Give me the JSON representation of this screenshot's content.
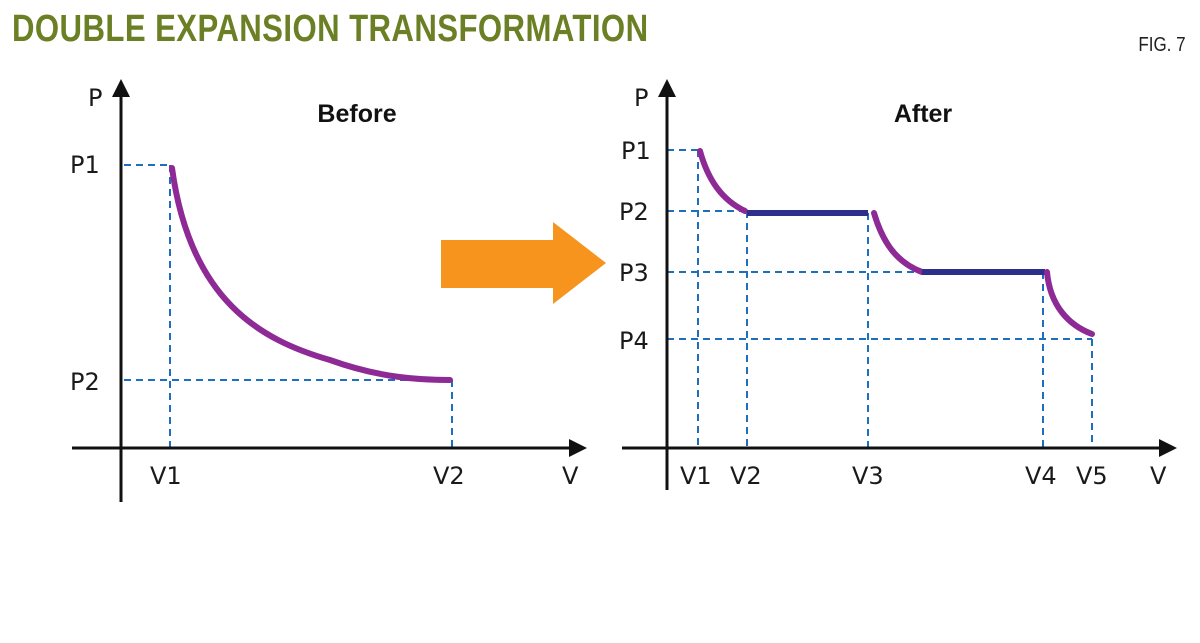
{
  "header": {
    "title": "DOUBLE EXPANSION TRANSFORMATION",
    "figure_label": "FIG. 7"
  },
  "before": {
    "heading": "Before",
    "axis_y": "P",
    "axis_x": "V",
    "p_labels": [
      "P1",
      "P2"
    ],
    "v_labels": [
      "V1",
      "V2"
    ]
  },
  "after": {
    "heading": "After",
    "axis_y": "P",
    "axis_x": "V",
    "p_labels": [
      "P1",
      "P2",
      "P3",
      "P4"
    ],
    "v_labels": [
      "V1",
      "V2",
      "V3",
      "V4",
      "V5"
    ]
  },
  "colors": {
    "title": "#6b7f24",
    "curve": "#8e2a96",
    "flat_segment": "#2e2f8c",
    "guide": "#1f6fbf",
    "arrow": "#f7941d"
  }
}
